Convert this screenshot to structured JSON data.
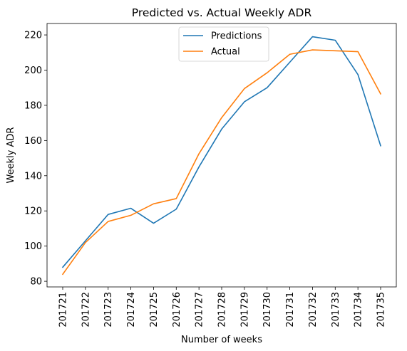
{
  "chart_data": {
    "type": "line",
    "title": "Predicted vs. Actual Weekly ADR",
    "xlabel": "Number of weeks",
    "ylabel": "Weekly ADR",
    "categories": [
      "201721",
      "201722",
      "201723",
      "201724",
      "201725",
      "201726",
      "201727",
      "201728",
      "201729",
      "201730",
      "201731",
      "201732",
      "201733",
      "201734",
      "201735"
    ],
    "ylim": [
      76.8,
      226.5
    ],
    "yticks": [
      "80",
      "100",
      "120",
      "140",
      "160",
      "180",
      "200",
      "220"
    ],
    "grid": false,
    "legend_position": "upper center",
    "series": [
      {
        "name": "Predictions",
        "color": "#1f77b4",
        "values": [
          88.0,
          103.0,
          118.0,
          121.5,
          113.0,
          121.0,
          145.0,
          166.5,
          182.0,
          190.0,
          204.5,
          219.0,
          217.0,
          197.5,
          157.0
        ]
      },
      {
        "name": "Actual",
        "color": "#ff7f0e",
        "values": [
          84.0,
          102.0,
          114.0,
          117.5,
          124.0,
          127.0,
          152.5,
          173.0,
          189.5,
          198.5,
          209.0,
          211.5,
          211.0,
          210.5,
          186.5
        ]
      }
    ]
  }
}
